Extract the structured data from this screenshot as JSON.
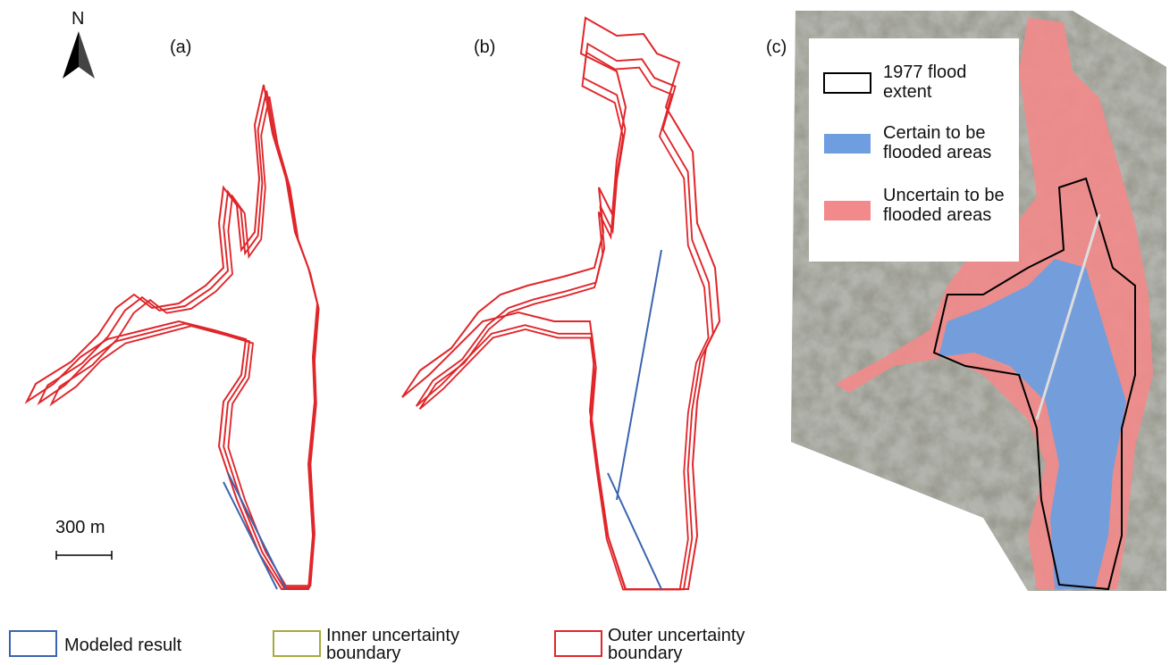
{
  "north_arrow": {
    "label": "N"
  },
  "panels": [
    {
      "label": "(a)"
    },
    {
      "label": "(b)"
    },
    {
      "label": "(c)",
      "legend": [
        {
          "label": "1977 flood extent"
        },
        {
          "label": "Certain to be flooded areas"
        },
        {
          "label": "Uncertain to be flooded areas"
        }
      ]
    }
  ],
  "scale_bar": {
    "label": "300 m"
  },
  "legend": [
    {
      "label": "Modeled result"
    },
    {
      "label": "Inner uncertainty boundary"
    },
    {
      "label": "Outer uncertainty boundary"
    }
  ]
}
